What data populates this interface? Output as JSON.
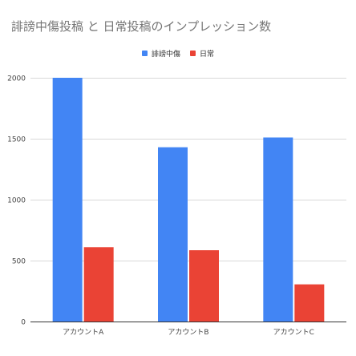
{
  "chart_data": {
    "type": "bar",
    "title": "誹謗中傷投稿 と 日常投稿のインプレッション数",
    "categories": [
      "アカウントA",
      "アカウントB",
      "アカウントC"
    ],
    "series": [
      {
        "name": "誹謗中傷",
        "color": "#4285f4",
        "values": [
          2000,
          1430,
          1510
        ]
      },
      {
        "name": "日常",
        "color": "#ea4335",
        "values": [
          610,
          585,
          305
        ]
      }
    ],
    "ylim": [
      0,
      2000
    ],
    "yticks": [
      0,
      500,
      1000,
      1500,
      2000
    ],
    "grid": true,
    "legend_position": "top-center"
  }
}
